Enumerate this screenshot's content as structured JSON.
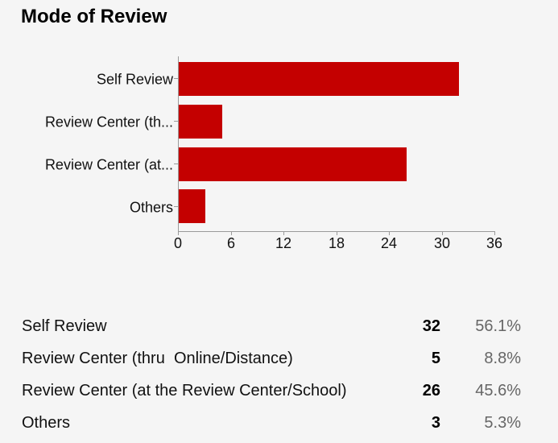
{
  "title": "Mode of Review",
  "chart_data": {
    "type": "bar",
    "orientation": "horizontal",
    "title": "Mode of Review",
    "categories": [
      "Self Review",
      "Review Center (th...",
      "Review Center (at...",
      "Others"
    ],
    "values": [
      32,
      5,
      26,
      3
    ],
    "xlabel": "",
    "ylabel": "",
    "xlim": [
      0,
      36
    ],
    "x_ticks": [
      "0",
      "6",
      "12",
      "18",
      "24",
      "30",
      "36"
    ],
    "bar_color": "#c40000",
    "grid": false,
    "legend": "none"
  },
  "summary_table": {
    "rows": [
      {
        "label": "Self Review",
        "count": "32",
        "percent": "56.1%"
      },
      {
        "label": "Review Center (thru  Online/Distance)",
        "count": "5",
        "percent": "8.8%"
      },
      {
        "label": "Review Center (at the Review Center/School)",
        "count": "26",
        "percent": "45.6%"
      },
      {
        "label": "Others",
        "count": "3",
        "percent": "5.3%"
      }
    ]
  }
}
